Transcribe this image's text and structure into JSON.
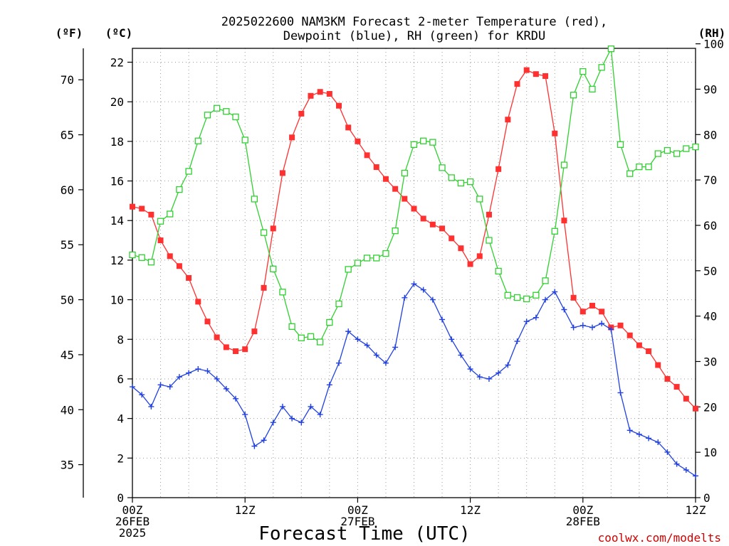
{
  "chart_data": {
    "type": "line",
    "title_lines": [
      "2025022600 NAM3KM Forecast 2-meter Temperature (red),",
      "Dewpoint (blue), RH (green) for KRDU"
    ],
    "units": {
      "fahrenheit": "(ºF)",
      "celsius": "(ºC)",
      "rh": "(RH)"
    },
    "xlabel": "Forecast Time (UTC)",
    "credit": "coolwx.com/modelts",
    "x_range_hours": [
      0,
      60
    ],
    "x_ticks": [
      {
        "hour": 0,
        "lines": [
          "00Z",
          "26FEB",
          "2025"
        ]
      },
      {
        "hour": 12,
        "lines": [
          "12Z"
        ]
      },
      {
        "hour": 24,
        "lines": [
          "00Z",
          "27FEB"
        ]
      },
      {
        "hour": 36,
        "lines": [
          "12Z"
        ]
      },
      {
        "hour": 48,
        "lines": [
          "00Z",
          "28FEB"
        ]
      },
      {
        "hour": 60,
        "lines": [
          "12Z"
        ]
      }
    ],
    "yaxis_c": {
      "range": [
        0,
        22.7
      ],
      "ticks": [
        0,
        2,
        4,
        6,
        8,
        10,
        12,
        14,
        16,
        18,
        20,
        22
      ]
    },
    "yaxis_f": {
      "ticks": [
        35,
        40,
        45,
        50,
        55,
        60,
        65,
        70
      ]
    },
    "yaxis_rh": {
      "range": [
        0,
        99
      ],
      "ticks": [
        0,
        10,
        20,
        30,
        40,
        50,
        60,
        70,
        80,
        90,
        100
      ]
    },
    "grid": true,
    "series": [
      {
        "name": "Temperature",
        "color": "#ff3030",
        "axis": "c",
        "marker": "filled-square",
        "x": [
          0,
          1,
          2,
          3,
          4,
          5,
          6,
          7,
          8,
          9,
          10,
          11,
          12,
          13,
          14,
          15,
          16,
          17,
          18,
          19,
          20,
          21,
          22,
          23,
          24,
          25,
          26,
          27,
          28,
          29,
          30,
          31,
          32,
          33,
          34,
          35,
          36,
          37,
          38,
          39,
          40,
          41,
          42,
          43,
          44,
          45,
          46,
          47,
          48,
          49,
          50,
          51,
          52,
          53,
          54,
          55,
          56,
          57,
          58,
          59,
          60
        ],
        "values": [
          14.7,
          14.6,
          14.3,
          13.0,
          12.2,
          11.7,
          11.1,
          9.9,
          8.9,
          8.1,
          7.6,
          7.4,
          7.5,
          8.4,
          10.6,
          13.6,
          16.4,
          18.2,
          19.4,
          20.3,
          20.5,
          20.4,
          19.8,
          18.7,
          18.0,
          17.3,
          16.7,
          16.1,
          15.6,
          15.1,
          14.6,
          14.1,
          13.8,
          13.6,
          13.1,
          12.6,
          11.8,
          12.2,
          14.3,
          16.6,
          19.1,
          20.9,
          21.6,
          21.4,
          21.3,
          18.4,
          14.0,
          10.1,
          9.4,
          9.7,
          9.4,
          8.6,
          8.7,
          8.2,
          7.7,
          7.4,
          6.7,
          6.0,
          5.6,
          5.0,
          4.5
        ]
      },
      {
        "name": "Dewpoint",
        "color": "#2040e0",
        "axis": "c",
        "marker": "plus",
        "x": [
          0,
          1,
          2,
          3,
          4,
          5,
          6,
          7,
          8,
          9,
          10,
          11,
          12,
          13,
          14,
          15,
          16,
          17,
          18,
          19,
          20,
          21,
          22,
          23,
          24,
          25,
          26,
          27,
          28,
          29,
          30,
          31,
          32,
          33,
          34,
          35,
          36,
          37,
          38,
          39,
          40,
          41,
          42,
          43,
          44,
          45,
          46,
          47,
          48,
          49,
          50,
          51,
          52,
          53,
          54,
          55,
          56,
          57,
          58,
          59,
          60
        ],
        "values": [
          5.6,
          5.2,
          4.6,
          5.7,
          5.6,
          6.1,
          6.3,
          6.5,
          6.4,
          6.0,
          5.5,
          5.0,
          4.2,
          2.6,
          2.9,
          3.8,
          4.6,
          4.0,
          3.8,
          4.6,
          4.2,
          5.7,
          6.8,
          8.4,
          8.0,
          7.7,
          7.2,
          6.8,
          7.6,
          10.1,
          10.8,
          10.5,
          10.0,
          9.0,
          8.0,
          7.2,
          6.5,
          6.1,
          6.0,
          6.3,
          6.7,
          7.9,
          8.9,
          9.1,
          10.0,
          10.4,
          9.5,
          8.6,
          8.7,
          8.6,
          8.8,
          8.5,
          5.3,
          3.4,
          3.2,
          3.0,
          2.8,
          2.3,
          1.7,
          1.4,
          1.1
        ]
      },
      {
        "name": "RH",
        "color": "#30d030",
        "axis": "rh",
        "marker": "open-square",
        "x": [
          0,
          1,
          2,
          3,
          4,
          5,
          6,
          7,
          8,
          9,
          10,
          11,
          12,
          13,
          14,
          15,
          16,
          17,
          18,
          19,
          20,
          21,
          22,
          23,
          24,
          25,
          26,
          27,
          28,
          29,
          30,
          31,
          32,
          33,
          34,
          35,
          36,
          37,
          38,
          39,
          40,
          41,
          42,
          43,
          44,
          45,
          46,
          47,
          48,
          49,
          50,
          51,
          52,
          53,
          54,
          55,
          56,
          57,
          58,
          59,
          60
        ],
        "values": [
          53.5,
          52.9,
          51.9,
          60.9,
          62.5,
          67.9,
          71.9,
          78.6,
          84.3,
          85.8,
          85.1,
          83.9,
          78.8,
          65.8,
          58.4,
          50.4,
          45.3,
          37.7,
          35.2,
          35.5,
          34.3,
          38.6,
          42.7,
          50.3,
          51.7,
          52.8,
          52.8,
          53.8,
          58.8,
          71.5,
          77.8,
          78.6,
          78.3,
          72.7,
          70.5,
          69.3,
          69.6,
          65.8,
          56.7,
          49.9,
          44.6,
          44.1,
          43.8,
          44.6,
          47.8,
          58.7,
          73.3,
          88.7,
          93.9,
          90.0,
          94.8,
          98.9,
          77.8,
          71.4,
          72.9,
          72.9,
          75.8,
          76.5,
          75.8,
          76.9,
          77.3
        ]
      }
    ]
  }
}
